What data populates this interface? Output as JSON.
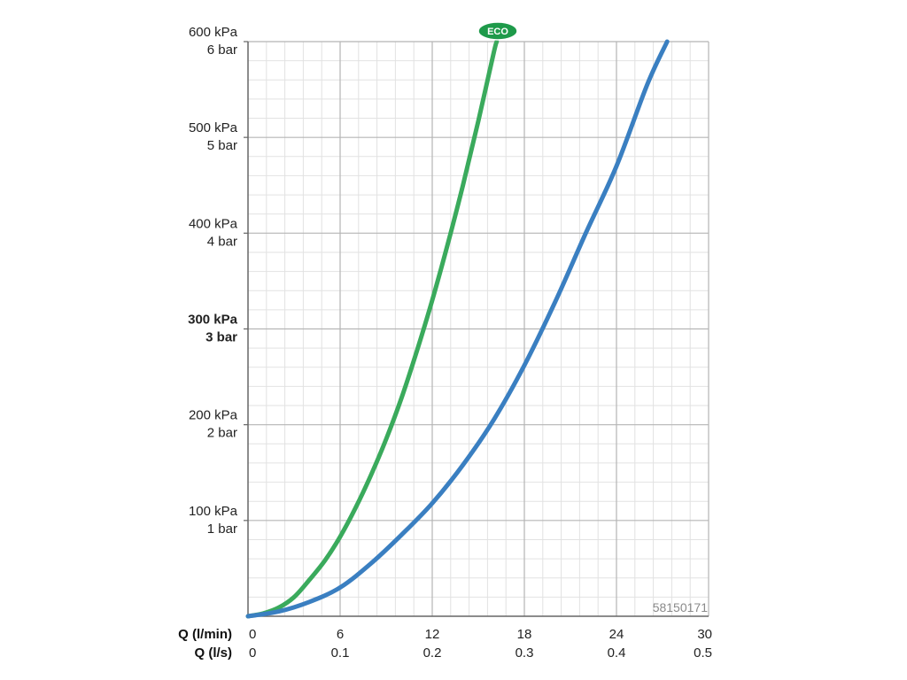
{
  "chart_data": {
    "type": "line",
    "x_axes": [
      {
        "name": "Q (l/min)",
        "ticks": [
          "0",
          "6",
          "12",
          "18",
          "24",
          "30"
        ],
        "range": [
          0,
          30
        ]
      },
      {
        "name": "Q (l/s)",
        "ticks": [
          "0",
          "0.1",
          "0.2",
          "0.3",
          "0.4",
          "0.5"
        ],
        "range": [
          0,
          0.5
        ]
      }
    ],
    "y_axis": {
      "range": [
        0,
        600
      ],
      "ticks": [
        {
          "value": 100,
          "kpa": "100 kPa",
          "bar": "1 bar"
        },
        {
          "value": 200,
          "kpa": "200 kPa",
          "bar": "2 bar"
        },
        {
          "value": 300,
          "kpa": "300 kPa",
          "bar": "3 bar"
        },
        {
          "value": 400,
          "kpa": "400 kPa",
          "bar": "4 bar"
        },
        {
          "value": 500,
          "kpa": "500 kPa",
          "bar": "5 bar"
        },
        {
          "value": 600,
          "kpa": "600 kPa",
          "bar": "6 bar"
        }
      ]
    },
    "grid": true,
    "series": [
      {
        "name": "ECO",
        "color": "#3aaa5c",
        "x": [
          0,
          1,
          2,
          3,
          4,
          5,
          6,
          7,
          8,
          9,
          10,
          11,
          12,
          13,
          14,
          15,
          16,
          16.2
        ],
        "y": [
          0,
          3,
          9,
          20,
          38,
          58,
          83,
          113,
          147,
          185,
          228,
          277,
          330,
          388,
          450,
          517,
          588,
          600
        ]
      },
      {
        "name": "",
        "color": "#3a7fc1",
        "x": [
          0,
          2,
          4,
          6,
          8,
          10,
          12,
          14,
          16,
          18,
          20,
          22,
          24,
          26,
          27.3
        ],
        "y": [
          0,
          5,
          15,
          30,
          55,
          85,
          118,
          158,
          205,
          262,
          328,
          400,
          470,
          555,
          600
        ]
      }
    ],
    "annotations": [
      "58150171"
    ]
  },
  "eco_badge": "ECO",
  "code_label": "58150171",
  "colors": {
    "grid_major": "#b5b5b5",
    "grid_minor": "#e2e2e2",
    "axis": "#666666"
  }
}
